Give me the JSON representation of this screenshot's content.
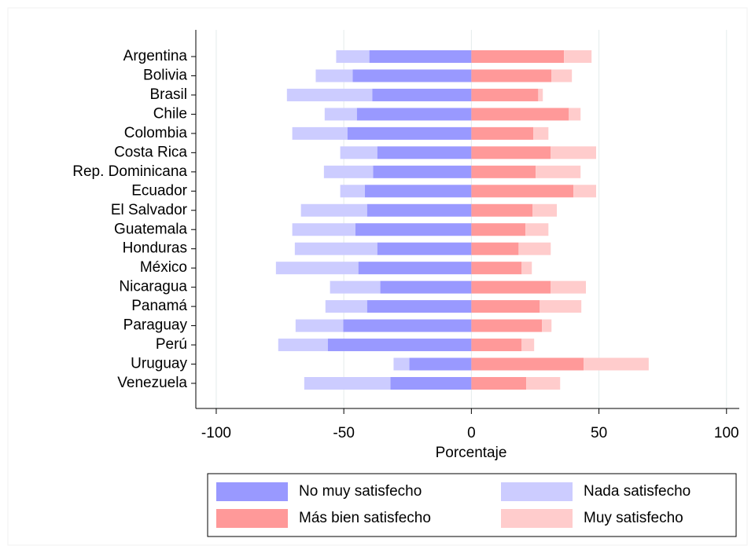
{
  "chart_data": {
    "type": "diverging-stacked-bar",
    "categories": [
      "Argentina",
      "Bolivia",
      "Brasil",
      "Chile",
      "Colombia",
      "Costa Rica",
      "Rep. Dominicana",
      "Ecuador",
      "El Salvador",
      "Guatemala",
      "Honduras",
      "México",
      "Nicaragua",
      "Panamá",
      "Paraguay",
      "Perú",
      "Uruguay",
      "Venezuela"
    ],
    "series": [
      {
        "name": "No muy satisfecho",
        "color": "#9999ff",
        "values": [
          -40,
          -46.5,
          -38.8,
          -44.9,
          -48.6,
          -36.9,
          -38.5,
          -41.8,
          -40.9,
          -45.5,
          -36.9,
          -44.3,
          -35.7,
          -40.9,
          -50.2,
          -56.3,
          -24.3,
          -31.7
        ]
      },
      {
        "name": "Nada satisfecho",
        "color": "#ccccff",
        "values": [
          -13,
          -14.5,
          -33.5,
          -12.6,
          -21.6,
          -14.5,
          -19.3,
          -9.6,
          -25.9,
          -24.7,
          -32.3,
          -32.3,
          -19.7,
          -16.3,
          -18.7,
          -19.4,
          -6.2,
          -33.8
        ]
      },
      {
        "name": "Más bien satisfecho",
        "color": "#ff9999",
        "values": [
          36.3,
          31.4,
          26.2,
          38.2,
          24.3,
          31.1,
          25.2,
          40,
          24,
          21.2,
          18.5,
          19.7,
          31.1,
          26.8,
          27.7,
          19.7,
          44,
          21.5
        ]
      },
      {
        "name": "Muy satisfecho",
        "color": "#ffcccc",
        "values": [
          10.8,
          8,
          1.8,
          4.6,
          5.9,
          17.8,
          17.6,
          8.9,
          9.5,
          9,
          12.6,
          4,
          13.8,
          16.3,
          3.7,
          4.9,
          25.5,
          13.3
        ]
      }
    ],
    "xlabel": "Porcentaje",
    "xlim": [
      -108,
      105
    ],
    "xticks": [
      -100,
      -50,
      0,
      50,
      100
    ],
    "grid": true
  }
}
